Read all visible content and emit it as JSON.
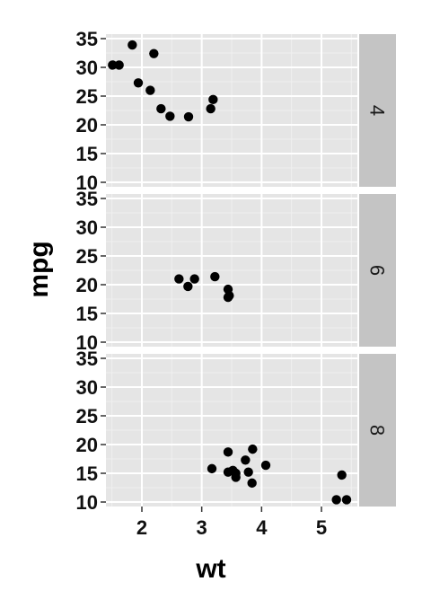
{
  "chart_data": {
    "type": "scatter",
    "xlabel": "wt",
    "ylabel": "mpg",
    "facet_by": "cyl",
    "grid": true,
    "facet_strip_position": "right",
    "colors": {
      "panel_background": "#e5e5e5",
      "grid_major": "#ffffff",
      "grid_minor": "#f0f0f0",
      "strip_background": "#c4c4c4",
      "point": "#000000"
    },
    "xlim": [
      1.4,
      5.6
    ],
    "ylim": [
      10,
      35
    ],
    "x_ticks": [
      2,
      3,
      4,
      5
    ],
    "x_tick_labels": [
      "2",
      "3",
      "4",
      "5"
    ],
    "y_ticks": [
      10,
      15,
      20,
      25,
      30,
      35
    ],
    "y_tick_labels": [
      "10",
      "15",
      "20",
      "25",
      "30",
      "35"
    ],
    "panels": [
      {
        "label": "4",
        "points": [
          {
            "x": 1.51,
            "y": 30.4
          },
          {
            "x": 1.62,
            "y": 30.4
          },
          {
            "x": 1.84,
            "y": 33.9
          },
          {
            "x": 1.94,
            "y": 27.3
          },
          {
            "x": 2.14,
            "y": 26.0
          },
          {
            "x": 2.2,
            "y": 32.4
          },
          {
            "x": 2.32,
            "y": 22.8
          },
          {
            "x": 2.47,
            "y": 21.5
          },
          {
            "x": 2.78,
            "y": 21.4
          },
          {
            "x": 3.15,
            "y": 22.8
          },
          {
            "x": 3.19,
            "y": 24.4
          }
        ]
      },
      {
        "label": "6",
        "points": [
          {
            "x": 2.62,
            "y": 21.0
          },
          {
            "x": 2.77,
            "y": 19.7
          },
          {
            "x": 2.88,
            "y": 21.0
          },
          {
            "x": 3.22,
            "y": 21.4
          },
          {
            "x": 3.44,
            "y": 19.2
          },
          {
            "x": 3.46,
            "y": 18.1
          },
          {
            "x": 3.44,
            "y": 17.8
          }
        ]
      },
      {
        "label": "8",
        "points": [
          {
            "x": 3.17,
            "y": 15.8
          },
          {
            "x": 3.44,
            "y": 18.7
          },
          {
            "x": 3.44,
            "y": 15.2
          },
          {
            "x": 3.52,
            "y": 15.5
          },
          {
            "x": 3.57,
            "y": 14.3
          },
          {
            "x": 3.57,
            "y": 15.0
          },
          {
            "x": 3.73,
            "y": 17.3
          },
          {
            "x": 3.78,
            "y": 15.2
          },
          {
            "x": 3.84,
            "y": 13.3
          },
          {
            "x": 3.85,
            "y": 19.2
          },
          {
            "x": 4.07,
            "y": 16.4
          },
          {
            "x": 5.25,
            "y": 10.4
          },
          {
            "x": 5.34,
            "y": 14.7
          },
          {
            "x": 5.42,
            "y": 10.4
          }
        ]
      }
    ]
  }
}
